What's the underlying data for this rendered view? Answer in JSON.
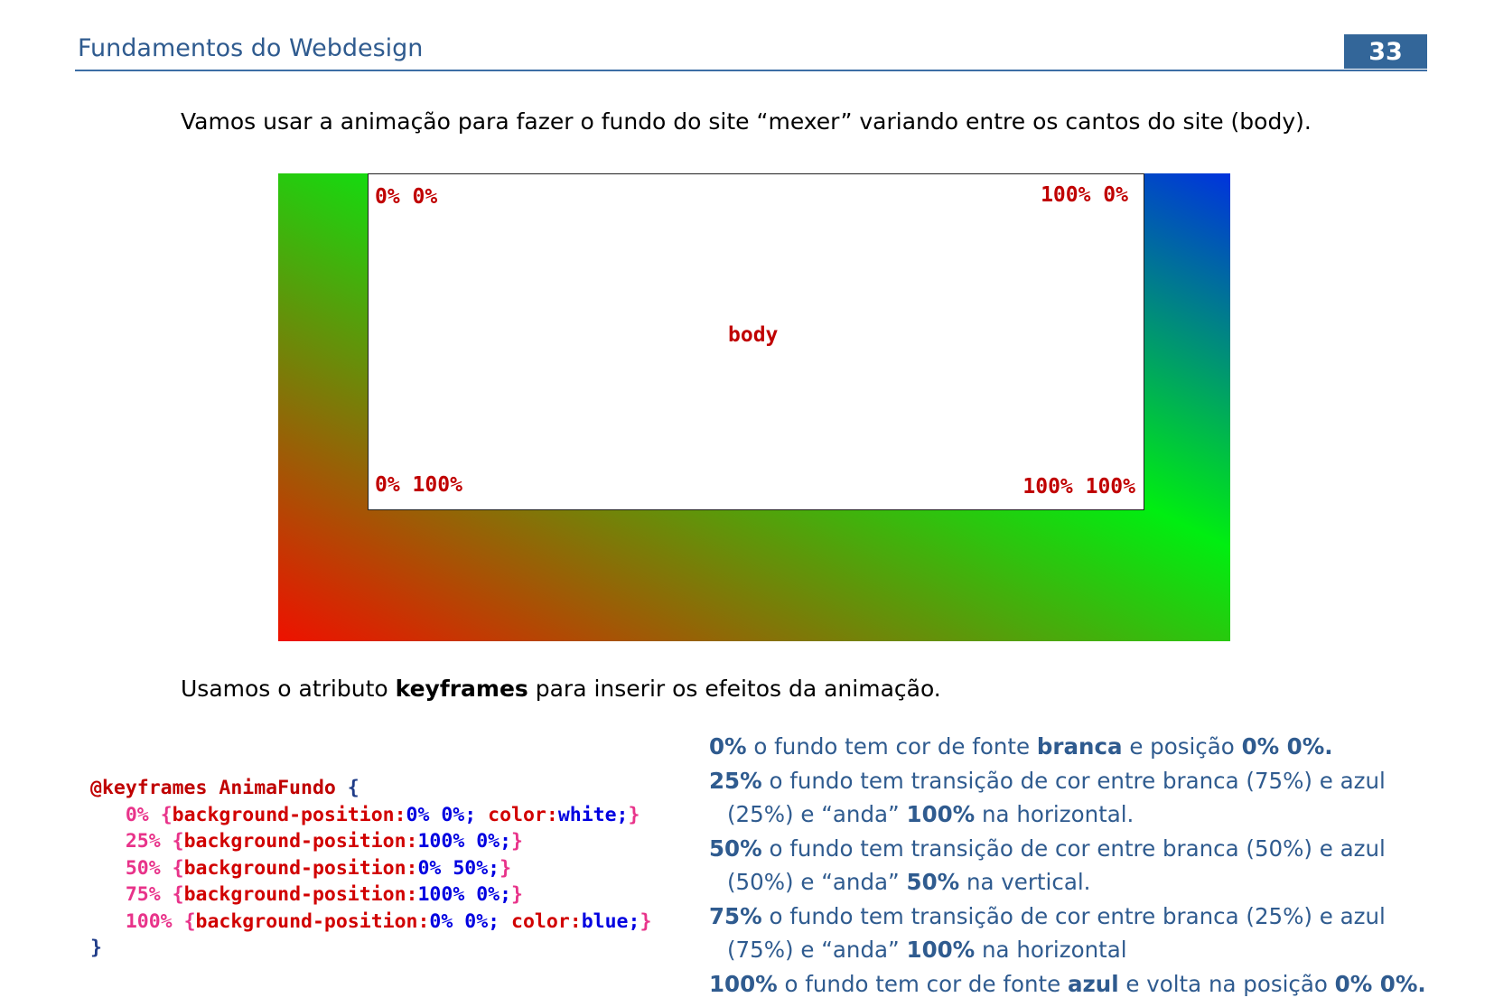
{
  "header": {
    "title": "Fundamentos do Webdesign",
    "page_number": "33"
  },
  "intro": {
    "text": "Vamos usar a animação para fazer o fundo do site “mexer” variando entre os cantos do site (body)."
  },
  "figure": {
    "corner_top_left": "0% 0%",
    "corner_top_right": "100% 0%",
    "center_label": "body",
    "corner_bottom_left": "0% 100%",
    "corner_bottom_right": "100% 100%",
    "gradient_colors": {
      "red": "#ee1100",
      "green": "#00ee11",
      "blue": "#0033dd"
    }
  },
  "keyframes_intro": {
    "before": "Usamos o atributo ",
    "keyword": "keyframes",
    "after": " para inserir os efeitos da animação."
  },
  "code": {
    "line1_at": "@keyframes AnimaFundo ",
    "open_brace": "{",
    "close_brace": "}",
    "frames": [
      {
        "pct": "0%",
        "open": "{",
        "prop": "background-position:",
        "val": "0% 0%;",
        "prop2": " color:",
        "val2": "white;",
        "close": "}"
      },
      {
        "pct": "25%",
        "open": "{",
        "prop": "background-position:",
        "val": "100% 0%;",
        "prop2": "",
        "val2": "",
        "close": "}"
      },
      {
        "pct": "50%",
        "open": "{",
        "prop": "background-position:",
        "val": "0% 50%;",
        "prop2": "",
        "val2": "",
        "close": "}"
      },
      {
        "pct": "75%",
        "open": "{",
        "prop": "background-position:",
        "val": "100% 0%;",
        "prop2": "",
        "val2": "",
        "close": "}"
      },
      {
        "pct": "100%",
        "open": "{",
        "prop": "background-position:",
        "val": "0% 0%;",
        "prop2": " color:",
        "val2": "blue;",
        "close": "}"
      }
    ]
  },
  "explanation": {
    "r0": {
      "pct": "0%",
      "t1": "  o fundo tem cor de fonte ",
      "b1": "branca",
      "t2": " e posição ",
      "b2": "0% 0%."
    },
    "r25": {
      "pct": "25%",
      "t1": "  o fundo tem transição de cor entre branca (75%) e azul",
      "c1": "(25%) e “anda” ",
      "b1": "100%",
      "c2": " na horizontal."
    },
    "r50": {
      "pct": "50%",
      "t1": "  o fundo tem transição de cor entre branca (50%) e azul",
      "c1": "(50%) e “anda” ",
      "b1": "50%",
      "c2": " na vertical."
    },
    "r75": {
      "pct": "75%",
      "t1": "  o fundo tem transição de cor entre branca (25%) e azul",
      "c1": "(75%) e “anda” ",
      "b1": "100%",
      "c2": " na horizontal"
    },
    "r100": {
      "pct": "100%",
      "t1": "  o fundo tem cor de fonte ",
      "b1": "azul",
      "t2": " e volta na posição ",
      "b2": "0% 0%."
    }
  }
}
